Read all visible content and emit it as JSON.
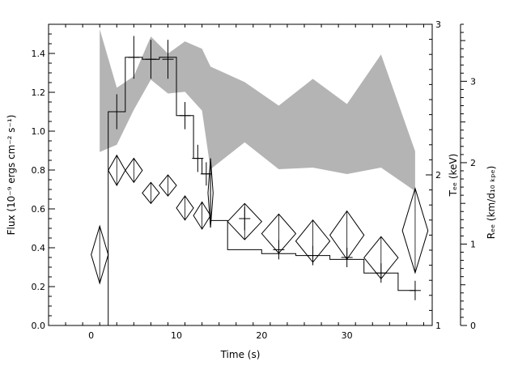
{
  "chart_data": {
    "type": "line",
    "title": "",
    "xlabel": "Time (s)",
    "xlim": [
      -5,
      40
    ],
    "x_ticks": [
      0,
      10,
      20,
      30
    ],
    "ylabel_left": "Flux (10⁻⁹ ergs cm⁻² s⁻¹)",
    "ylim_left": [
      0,
      1.55
    ],
    "y_ticks_left": [
      "0.0",
      "0.2",
      "0.4",
      "0.6",
      "0.8",
      "1.0",
      "1.2",
      "1.4"
    ],
    "ylabel_kT": "Tₑₑ (keV)",
    "ylim_kT": [
      1,
      3
    ],
    "y_ticks_kT": [
      "1",
      "2",
      "3"
    ],
    "ylabel_R": "Rₑₑ (km/d₁₀ ₖₚₑ)",
    "ylim_R": [
      0,
      3.7
    ],
    "y_ticks_R": [
      "0",
      "1",
      "2",
      "3"
    ],
    "flux_histogram": {
      "edges": [
        2,
        4,
        6,
        8,
        10,
        12,
        13,
        14,
        16,
        20,
        24,
        28,
        32,
        36,
        38
      ],
      "values": [
        1.1,
        1.38,
        1.37,
        1.38,
        1.08,
        0.86,
        0.78,
        0.54,
        0.39,
        0.37,
        0.36,
        0.34,
        0.27,
        0.18
      ]
    },
    "flux_errors": [
      {
        "x": 3,
        "y": 1.1,
        "err": 0.09
      },
      {
        "x": 5,
        "y": 1.38,
        "err": 0.11
      },
      {
        "x": 7,
        "y": 1.37,
        "err": 0.1
      },
      {
        "x": 9,
        "y": 1.37,
        "err": 0.1
      },
      {
        "x": 11,
        "y": 1.08,
        "err": 0.07
      },
      {
        "x": 12.5,
        "y": 0.86,
        "err": 0.07
      },
      {
        "x": 13.5,
        "y": 0.78,
        "err": 0.06
      },
      {
        "x": 18,
        "y": 0.55,
        "err": 0.06
      },
      {
        "x": 22,
        "y": 0.39,
        "err": 0.05
      },
      {
        "x": 26,
        "y": 0.36,
        "err": 0.05
      },
      {
        "x": 30,
        "y": 0.35,
        "err": 0.05
      },
      {
        "x": 34,
        "y": 0.27,
        "err": 0.05
      },
      {
        "x": 38,
        "y": 0.18,
        "err": 0.05
      }
    ],
    "kT_diamonds": [
      {
        "x": 1,
        "y": 1.47,
        "dx": 1.0,
        "dy": 0.19
      },
      {
        "x": 3,
        "y": 2.03,
        "dx": 1.0,
        "dy": 0.1
      },
      {
        "x": 5,
        "y": 2.03,
        "dx": 1.0,
        "dy": 0.08
      },
      {
        "x": 7,
        "y": 1.88,
        "dx": 1.0,
        "dy": 0.07
      },
      {
        "x": 9,
        "y": 1.93,
        "dx": 1.0,
        "dy": 0.07
      },
      {
        "x": 11,
        "y": 1.78,
        "dx": 1.0,
        "dy": 0.08
      },
      {
        "x": 13,
        "y": 1.73,
        "dx": 1.0,
        "dy": 0.09
      },
      {
        "x": 14,
        "y": 1.88,
        "dx": 0.3,
        "dy": 0.23
      },
      {
        "x": 18,
        "y": 1.69,
        "dx": 2.0,
        "dy": 0.12
      },
      {
        "x": 22,
        "y": 1.61,
        "dx": 2.0,
        "dy": 0.13
      },
      {
        "x": 26,
        "y": 1.56,
        "dx": 2.0,
        "dy": 0.14
      },
      {
        "x": 30,
        "y": 1.6,
        "dx": 2.0,
        "dy": 0.16
      },
      {
        "x": 34,
        "y": 1.45,
        "dx": 2.0,
        "dy": 0.14
      },
      {
        "x": 38,
        "y": 1.63,
        "dx": 1.5,
        "dy": 0.28
      }
    ],
    "R_band": {
      "x": [
        1,
        3,
        5,
        7,
        9,
        11,
        13,
        14,
        18,
        22,
        26,
        30,
        34,
        38
      ],
      "lower": [
        2.13,
        2.22,
        2.65,
        3.02,
        2.85,
        2.87,
        2.64,
        1.92,
        2.25,
        1.92,
        1.94,
        1.86,
        1.94,
        1.65
      ],
      "upper": [
        3.64,
        2.92,
        3.06,
        3.55,
        3.34,
        3.49,
        3.4,
        3.18,
        2.99,
        2.7,
        3.03,
        2.72,
        3.33,
        2.14
      ]
    }
  }
}
